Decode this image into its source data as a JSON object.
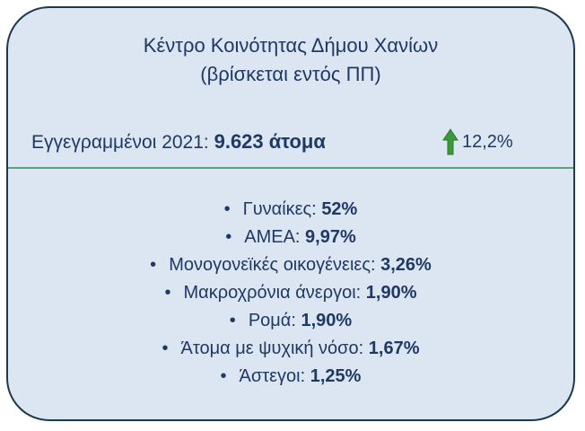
{
  "title": [
    "Κέντρο Κοινότητας Δήμου Χανίων",
    "(βρίσκεται εντός ΠΠ)"
  ],
  "registered": {
    "label": "Εγγεγραμμένοι 2021:",
    "value": "9.623 άτομα",
    "change": "12,2%"
  },
  "items": [
    {
      "label": "Γυναίκες:",
      "value": "52%"
    },
    {
      "label": "ΑΜΕΑ:",
      "value": "9,97%"
    },
    {
      "label": "Μονογονεϊκές οικογένειες:",
      "value": "3,26%"
    },
    {
      "label": "Μακροχρόνια άνεργοι:",
      "value": "1,90%"
    },
    {
      "label": "Ρομά:",
      "value": "1,90%"
    },
    {
      "label": "Άτομα με ψυχική νόσο:",
      "value": "1,67%"
    },
    {
      "label": "Άστεγοι:",
      "value": "1,25%"
    }
  ]
}
